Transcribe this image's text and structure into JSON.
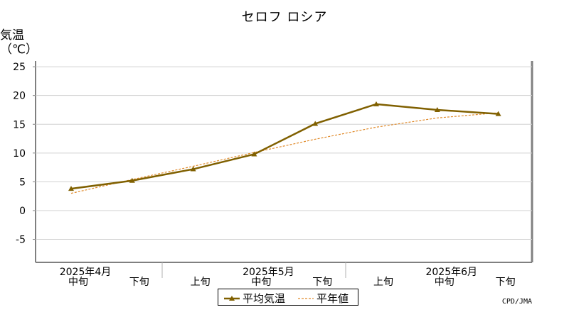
{
  "chart_data": {
    "type": "line",
    "title": "セロフ ロシア",
    "ylabel": "気温\n（℃）",
    "ylim": [
      -9,
      26
    ],
    "yticks": [
      25,
      20,
      15,
      10,
      5,
      0,
      -5
    ],
    "grid": true,
    "x": [
      {
        "dekad": "中旬",
        "month": "2025年4月"
      },
      {
        "dekad": "下旬",
        "month": ""
      },
      {
        "dekad": "上旬",
        "month": ""
      },
      {
        "dekad": "中旬",
        "month": "2025年5月"
      },
      {
        "dekad": "下旬",
        "month": ""
      },
      {
        "dekad": "上旬",
        "month": ""
      },
      {
        "dekad": "中旬",
        "month": "2025年6月"
      },
      {
        "dekad": "下旬",
        "month": ""
      }
    ],
    "series": [
      {
        "name": "平均気温",
        "values": [
          3.8,
          5.2,
          7.2,
          9.8,
          15.1,
          18.5,
          17.5,
          16.8
        ],
        "color": "#806000",
        "style": "solid",
        "marker": "triangle"
      },
      {
        "name": "平年値",
        "values": [
          3.0,
          5.4,
          7.7,
          10.1,
          12.4,
          14.5,
          16.1,
          17.0
        ],
        "color": "#e08a2a",
        "style": "dashed"
      }
    ],
    "legend": "bottom-center"
  },
  "credit": "CPD/JMA"
}
